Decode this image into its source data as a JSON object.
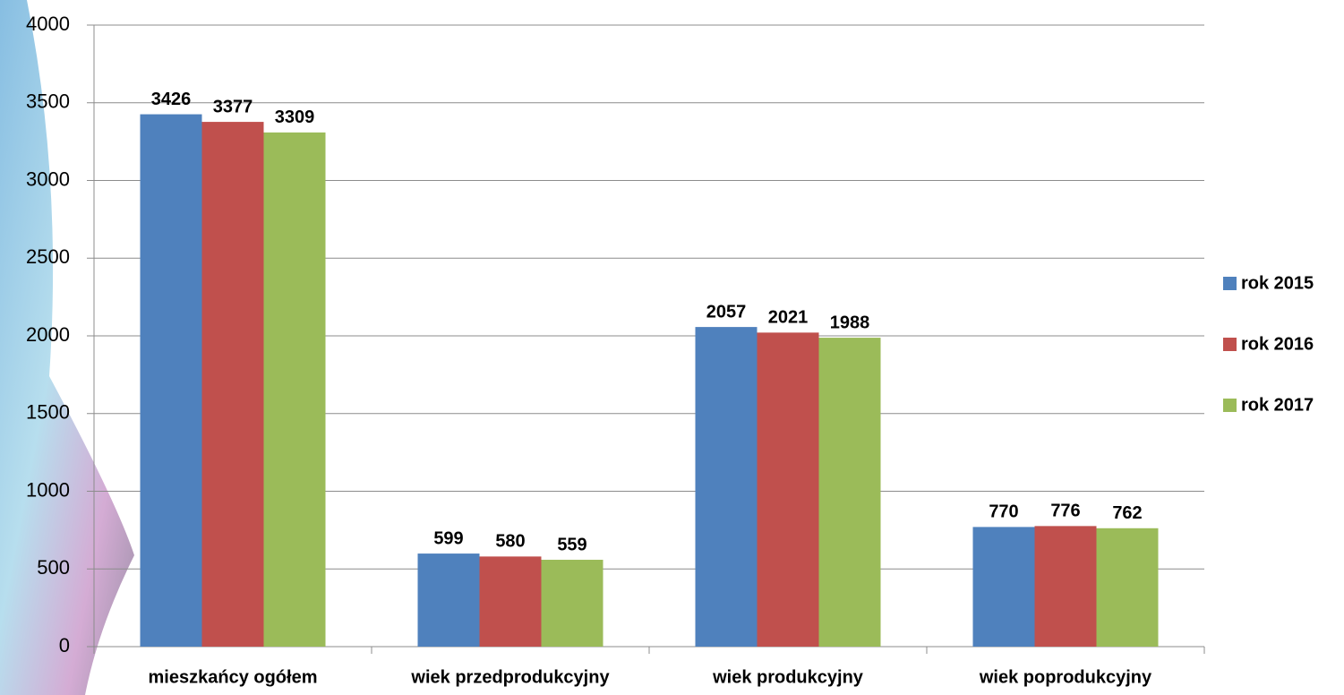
{
  "chart_data": {
    "type": "bar",
    "categories": [
      "mieszkańcy ogółem",
      "wiek przedprodukcyjny",
      "wiek produkcyjny",
      "wiek poprodukcyjny"
    ],
    "series": [
      {
        "name": "rok 2015",
        "color": "#4f81bd",
        "values": [
          3426,
          599,
          2057,
          770
        ]
      },
      {
        "name": "rok 2016",
        "color": "#c0504d",
        "values": [
          3377,
          580,
          2021,
          776
        ]
      },
      {
        "name": "rok 2017",
        "color": "#9bbb59",
        "values": [
          3309,
          559,
          1988,
          762
        ]
      }
    ],
    "ylim": [
      0,
      4000
    ],
    "yticks": [
      0,
      500,
      1000,
      1500,
      2000,
      2500,
      3000,
      3500,
      4000
    ],
    "grid": true,
    "legend": "right"
  }
}
